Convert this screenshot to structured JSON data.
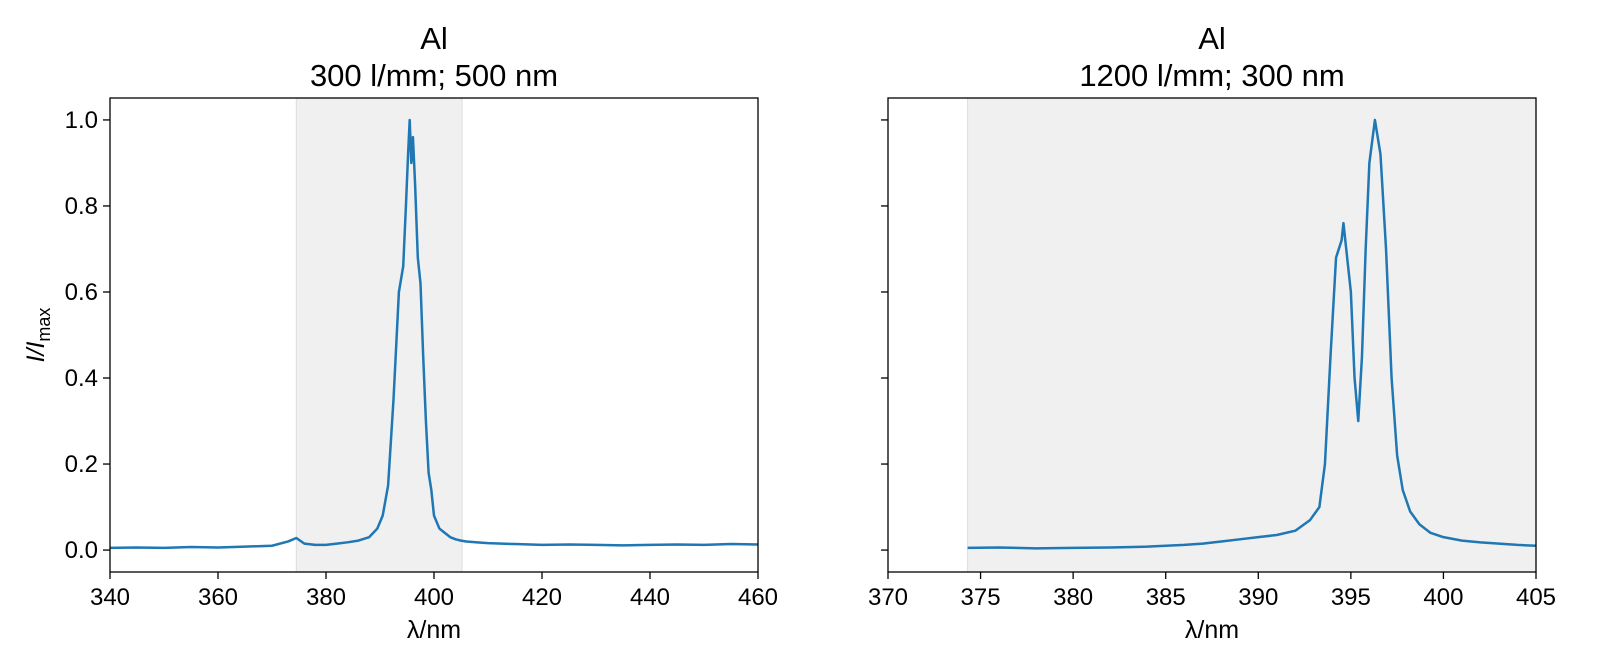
{
  "chart_data": [
    {
      "type": "line",
      "title": "Al",
      "subtitle": "300 l/mm; 500 nm",
      "xlabel": "λ/nm",
      "ylabel": {
        "main": "I/I",
        "subscript": "max"
      },
      "color": "#1f77b4",
      "shaded_span": [
        374.5,
        405.2
      ],
      "shade_color": "#f0f0f0",
      "xlim": [
        340,
        460
      ],
      "xticks": [
        340,
        360,
        380,
        400,
        420,
        440,
        460
      ],
      "ylim": [
        -0.051,
        1.051
      ],
      "yticks": [
        {
          "value": 0,
          "label": "0.0"
        },
        0.2,
        0.4,
        0.6,
        0.8,
        {
          "value": 1,
          "label": "1.0"
        }
      ],
      "ytick_labels": true,
      "x": [
        340,
        345,
        350,
        355,
        360,
        365,
        370,
        373,
        374.5,
        376,
        378,
        380,
        382,
        384,
        386,
        388,
        389.5,
        390.5,
        391.5,
        392.5,
        393.5,
        394.3,
        394.8,
        395.2,
        395.5,
        395.8,
        396.1,
        396.5,
        397,
        397.5,
        398,
        398.5,
        399,
        399.5,
        400,
        401,
        402,
        403,
        404,
        405,
        406,
        408,
        410,
        415,
        420,
        425,
        430,
        435,
        440,
        445,
        450,
        455,
        460
      ],
      "values": [
        0.005,
        0.006,
        0.005,
        0.007,
        0.006,
        0.008,
        0.01,
        0.02,
        0.028,
        0.015,
        0.012,
        0.012,
        0.015,
        0.018,
        0.022,
        0.03,
        0.05,
        0.08,
        0.15,
        0.35,
        0.6,
        0.66,
        0.8,
        0.92,
        1.0,
        0.9,
        0.96,
        0.85,
        0.68,
        0.62,
        0.45,
        0.3,
        0.18,
        0.14,
        0.08,
        0.05,
        0.04,
        0.03,
        0.025,
        0.022,
        0.02,
        0.018,
        0.016,
        0.014,
        0.012,
        0.013,
        0.012,
        0.011,
        0.012,
        0.013,
        0.012,
        0.014,
        0.013
      ]
    },
    {
      "type": "line",
      "title": "Al",
      "subtitle": "1200 l/mm; 300 nm",
      "xlabel": "λ/nm",
      "color": "#1f77b4",
      "shaded_span": [
        374.3,
        405
      ],
      "shade_color": "#f0f0f0",
      "xlim": [
        370,
        405
      ],
      "xticks": [
        370,
        375,
        380,
        385,
        390,
        395,
        400,
        405
      ],
      "ylim": [
        -0.051,
        1.051
      ],
      "yticks": [
        0,
        0.2,
        0.4,
        0.6,
        0.8,
        1
      ],
      "ytick_labels": false,
      "x": [
        374.3,
        376,
        378,
        380,
        382,
        384,
        386,
        387,
        388,
        389,
        390,
        391,
        392,
        392.8,
        393.3,
        393.6,
        393.9,
        394.2,
        394.5,
        394.6,
        394.8,
        395.0,
        395.2,
        395.4,
        395.6,
        395.8,
        396.0,
        396.3,
        396.6,
        396.9,
        397.2,
        397.5,
        397.8,
        398.2,
        398.7,
        399.3,
        400,
        401,
        402,
        403,
        404,
        405
      ],
      "values": [
        0.005,
        0.006,
        0.004,
        0.005,
        0.006,
        0.008,
        0.012,
        0.015,
        0.02,
        0.025,
        0.03,
        0.035,
        0.045,
        0.07,
        0.1,
        0.2,
        0.45,
        0.68,
        0.72,
        0.76,
        0.68,
        0.6,
        0.4,
        0.3,
        0.45,
        0.7,
        0.9,
        1.0,
        0.92,
        0.7,
        0.4,
        0.22,
        0.14,
        0.09,
        0.06,
        0.04,
        0.03,
        0.022,
        0.018,
        0.015,
        0.012,
        0.01
      ]
    }
  ]
}
